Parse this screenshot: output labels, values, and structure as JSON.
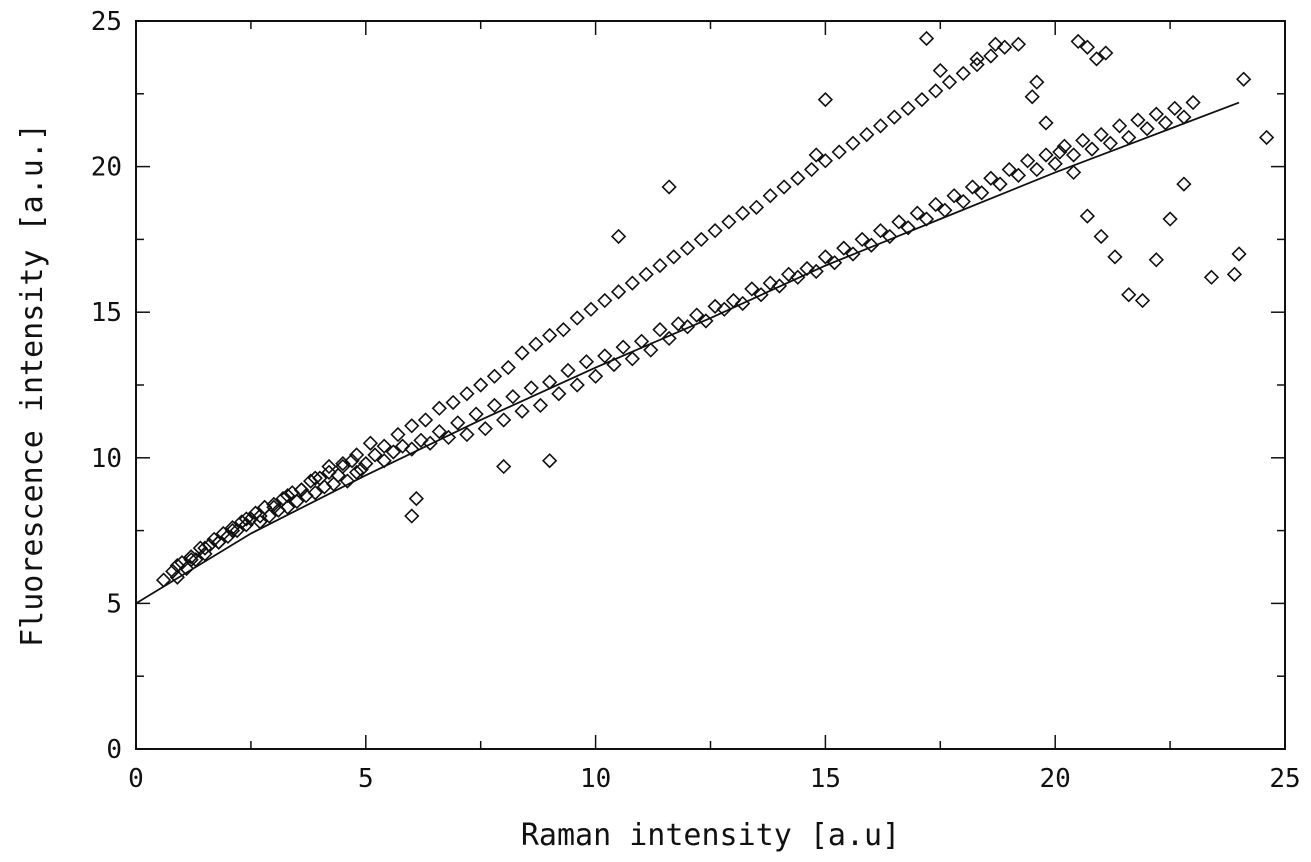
{
  "chart_data": {
    "type": "scatter",
    "title": "",
    "xlabel": "Raman intensity [a.u]",
    "ylabel": "Fluorescence intensity [a.u.]",
    "xlim": [
      0,
      25
    ],
    "ylim": [
      0,
      25
    ],
    "x_ticks": [
      0,
      5,
      10,
      15,
      20,
      25
    ],
    "y_ticks": [
      0,
      5,
      10,
      15,
      20,
      25
    ],
    "x_tick_labels": [
      "0",
      "5",
      "10",
      "15",
      "20",
      "25"
    ],
    "y_tick_labels": [
      "0",
      "5",
      "10",
      "15",
      "20",
      "25"
    ],
    "grid": false,
    "legend": "none",
    "marker": "open-diamond",
    "series": [
      {
        "x": [
          0.6,
          0.8,
          0.9,
          1.0,
          1.1,
          1.2,
          1.3,
          1.4,
          1.5,
          1.6,
          1.7,
          1.8,
          1.9,
          2.0,
          2.1,
          2.2,
          2.3,
          2.4,
          2.5,
          2.6,
          2.7,
          2.8,
          2.9,
          3.0,
          3.1,
          3.2,
          3.3,
          3.4,
          3.5,
          3.6,
          3.7,
          3.8,
          3.9,
          4.0,
          4.1,
          4.2,
          4.3,
          4.4,
          4.5,
          4.6,
          4.7,
          4.8,
          4.9,
          5.0,
          5.2,
          5.4,
          5.6,
          5.8,
          6.0,
          6.2,
          6.4,
          6.6,
          6.8,
          7.0,
          7.2,
          7.4,
          7.6,
          7.8,
          8.0,
          8.2,
          8.4,
          8.6,
          8.8,
          9.0,
          9.2,
          9.4,
          9.6,
          9.8,
          10.0,
          10.2,
          10.4,
          10.6,
          10.8,
          11.0,
          11.2,
          11.4,
          11.6,
          11.8,
          12.0,
          12.2,
          12.4,
          12.6,
          12.8,
          13.0,
          13.2,
          13.4,
          13.6,
          13.8,
          14.0,
          14.2,
          14.4,
          14.6,
          14.8,
          15.0,
          15.2,
          15.4,
          15.6,
          15.8,
          16.0,
          16.2,
          16.4,
          16.6,
          16.8,
          17.0,
          17.2,
          17.4,
          17.6,
          17.8,
          18.0,
          18.2,
          18.4,
          18.6,
          18.8,
          19.0,
          19.2,
          19.4,
          19.6,
          19.8,
          20.0,
          20.2,
          20.4,
          20.6,
          20.8,
          21.0,
          21.2,
          21.4,
          21.6,
          21.8,
          22.0,
          22.2,
          22.4,
          22.6,
          22.8,
          23.0,
          23.4,
          23.9,
          24.0,
          24.1,
          24.6,
          0.9,
          1.2,
          1.5,
          1.8,
          2.1,
          2.4,
          2.7,
          3.0,
          3.3,
          3.6,
          3.9,
          4.2,
          4.5,
          4.8,
          5.1,
          5.4,
          5.7,
          6.0,
          6.3,
          6.6,
          6.9,
          7.2,
          7.5,
          7.8,
          8.1,
          8.4,
          8.7,
          9.0,
          9.3,
          9.6,
          9.9,
          10.2,
          10.5,
          10.8,
          11.1,
          11.4,
          11.7,
          12.0,
          12.3,
          12.6,
          12.9,
          13.2,
          13.5,
          13.8,
          14.1,
          14.4,
          14.7,
          15.0,
          15.3,
          15.6,
          15.9,
          16.2,
          16.5,
          16.8,
          17.1,
          17.4,
          17.7,
          18.0,
          18.3,
          18.6,
          18.9,
          19.2,
          19.5,
          19.8,
          20.1,
          20.4,
          20.7,
          21.0,
          21.3,
          21.6,
          21.9,
          22.2,
          22.5,
          22.8,
          17.2,
          17.5,
          18.3,
          18.7,
          19.6,
          20.5,
          20.7,
          20.9,
          21.1,
          15.0,
          14.8,
          11.6,
          10.5,
          9.0,
          8.0,
          6.1,
          6.0
        ],
        "y": [
          5.8,
          6.1,
          5.9,
          6.4,
          6.2,
          6.6,
          6.5,
          6.9,
          6.7,
          7.0,
          7.2,
          7.1,
          7.4,
          7.3,
          7.6,
          7.5,
          7.8,
          7.7,
          7.9,
          8.1,
          7.8,
          8.3,
          8.0,
          8.4,
          8.2,
          8.6,
          8.3,
          8.8,
          8.5,
          8.9,
          8.7,
          9.2,
          8.8,
          9.3,
          9.0,
          9.5,
          9.1,
          9.4,
          9.7,
          9.2,
          9.9,
          9.5,
          9.6,
          9.8,
          10.1,
          9.9,
          10.2,
          10.4,
          10.3,
          10.6,
          10.5,
          10.9,
          10.7,
          11.2,
          10.8,
          11.5,
          11.0,
          11.8,
          11.3,
          12.1,
          11.6,
          12.4,
          11.8,
          12.6,
          12.2,
          13.0,
          12.5,
          13.3,
          12.8,
          13.5,
          13.2,
          13.8,
          13.4,
          14.0,
          13.7,
          14.4,
          14.1,
          14.6,
          14.5,
          14.9,
          14.7,
          15.2,
          15.1,
          15.4,
          15.3,
          15.8,
          15.6,
          16.0,
          15.9,
          16.3,
          16.2,
          16.5,
          16.4,
          16.9,
          16.7,
          17.2,
          17.0,
          17.5,
          17.3,
          17.8,
          17.6,
          18.1,
          17.9,
          18.4,
          18.2,
          18.7,
          18.5,
          19.0,
          18.8,
          19.3,
          19.1,
          19.6,
          19.4,
          19.9,
          19.7,
          20.2,
          19.9,
          20.4,
          20.1,
          20.7,
          20.4,
          20.9,
          20.6,
          21.1,
          20.8,
          21.4,
          21.0,
          21.6,
          21.3,
          21.8,
          21.5,
          22.0,
          21.7,
          22.2,
          16.2,
          16.3,
          17.0,
          23.0,
          21.0,
          6.3,
          6.5,
          6.9,
          7.1,
          7.5,
          7.9,
          8.0,
          8.3,
          8.7,
          8.9,
          9.3,
          9.7,
          9.8,
          10.1,
          10.5,
          10.4,
          10.8,
          11.1,
          11.3,
          11.7,
          11.9,
          12.2,
          12.5,
          12.8,
          13.1,
          13.6,
          13.9,
          14.2,
          14.4,
          14.8,
          15.1,
          15.4,
          15.7,
          16.0,
          16.3,
          16.6,
          16.9,
          17.2,
          17.5,
          17.8,
          18.1,
          18.4,
          18.6,
          19.0,
          19.3,
          19.6,
          19.9,
          20.2,
          20.5,
          20.8,
          21.1,
          21.4,
          21.7,
          22.0,
          22.3,
          22.6,
          22.9,
          23.2,
          23.5,
          23.8,
          24.1,
          24.2,
          22.4,
          21.5,
          20.5,
          19.8,
          18.3,
          17.6,
          16.9,
          15.6,
          15.4,
          16.8,
          18.2,
          19.4,
          24.4,
          23.3,
          23.7,
          24.2,
          22.9,
          24.3,
          24.1,
          23.7,
          23.9,
          22.3,
          20.4,
          19.3,
          17.6,
          9.9,
          9.7,
          8.6,
          8.0
        ],
        "fit_x": [
          0,
          2.5,
          5,
          7.5,
          10,
          12.5,
          15,
          17.5,
          20,
          22.5,
          24
        ],
        "fit_y": [
          5.0,
          7.4,
          9.4,
          11.3,
          13.1,
          14.8,
          16.6,
          18.2,
          19.8,
          21.3,
          22.2
        ]
      }
    ]
  }
}
